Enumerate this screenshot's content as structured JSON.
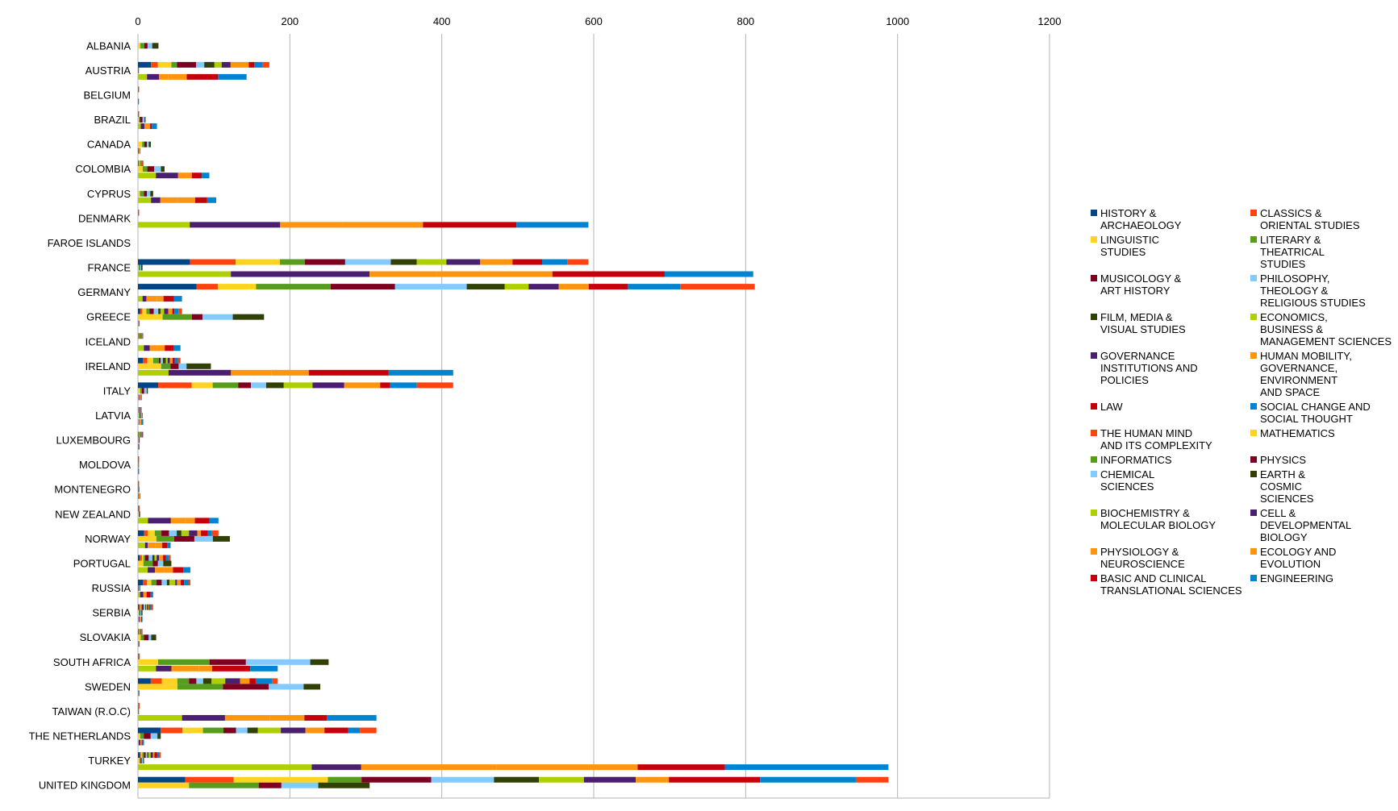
{
  "chart_data": {
    "type": "bar",
    "orientation": "horizontal",
    "stacked": true,
    "title": "",
    "xlabel": "",
    "ylabel": "",
    "xlim": [
      0,
      1200
    ],
    "xticks": [
      0,
      200,
      400,
      600,
      800,
      1000,
      1200
    ],
    "grid": true,
    "legend_position": "right",
    "categories": [
      "ALBANIA",
      "AUSTRIA",
      "BELGIUM",
      "BRAZIL",
      "CANADA",
      "COLOMBIA",
      "CYPRUS",
      "DENMARK",
      "FAROE ISLANDS",
      "FRANCE",
      "GERMANY",
      "GREECE",
      "ICELAND",
      "IRELAND",
      "ITALY",
      "LATVIA",
      "LUXEMBOURG",
      "MOLDOVA",
      "MONTENEGRO",
      "NEW ZEALAND",
      "NORWAY",
      "PORTUGAL",
      "RUSSIA",
      "SERBIA",
      "SLOVAKIA",
      "SOUTH AFRICA",
      "SWEDEN",
      "TAIWAN (R.O.C)",
      "THE NETHERLANDS",
      "TURKEY",
      "UNITED KINGDOM"
    ],
    "panels": [
      "SH",
      "PE",
      "LS"
    ],
    "series": [
      {
        "name": "HISTORY & ARCHAEOLOGY",
        "panel": "SH",
        "color": "#004586"
      },
      {
        "name": "CLASSICS & ORIENTAL STUDIES",
        "panel": "SH",
        "color": "#ff420e"
      },
      {
        "name": "LINGUISTIC STUDIES",
        "panel": "SH",
        "color": "#ffd320"
      },
      {
        "name": "LITERARY & THEATRICAL STUDIES",
        "panel": "SH",
        "color": "#579d1c"
      },
      {
        "name": "MUSICOLOGY & ART HISTORY",
        "panel": "SH",
        "color": "#7e0021"
      },
      {
        "name": "PHILOSOPHY, THEOLOGY & RELIGIOUS STUDIES",
        "panel": "SH",
        "color": "#83caff"
      },
      {
        "name": "FILM, MEDIA & VISUAL STUDIES",
        "panel": "SH",
        "color": "#314004"
      },
      {
        "name": "ECONOMICS, BUSINESS & MANAGEMENT SCIENCES",
        "panel": "SH",
        "color": "#aecf00"
      },
      {
        "name": "GOVERNANCE INSTITUTIONS AND POLICIES",
        "panel": "SH",
        "color": "#4b1f6f"
      },
      {
        "name": "HUMAN MOBILITY, GOVERNANCE, ENVIRONMENT AND SPACE",
        "panel": "SH",
        "color": "#ff950e"
      },
      {
        "name": "LAW",
        "panel": "SH",
        "color": "#c5000b"
      },
      {
        "name": "SOCIAL CHANGE AND SOCIAL THOUGHT",
        "panel": "SH",
        "color": "#0084d1"
      },
      {
        "name": "THE HUMAN MIND AND ITS COMPLEXITY",
        "panel": "SH",
        "color": "#ff420e"
      },
      {
        "name": "MATHEMATICS",
        "panel": "PE",
        "color": "#ffd320"
      },
      {
        "name": "INFORMATICS",
        "panel": "PE",
        "color": "#579d1c"
      },
      {
        "name": "PHYSICS",
        "panel": "PE",
        "color": "#7e0021"
      },
      {
        "name": "CHEMICAL SCIENCES",
        "panel": "PE",
        "color": "#83caff"
      },
      {
        "name": "EARTH & COSMIC SCIENCES",
        "panel": "PE",
        "color": "#314004"
      },
      {
        "name": "BIOCHEMISTRY & MOLECULAR BIOLOGY",
        "panel": "LS",
        "color": "#aecf00"
      },
      {
        "name": "CELL & DEVELOPMENTAL BIOLOGY",
        "panel": "LS",
        "color": "#4b1f6f"
      },
      {
        "name": "PHYSIOLOGY & NEUROSCIENCE",
        "panel": "LS",
        "color": "#ff950e"
      },
      {
        "name": "ECOLOGY AND EVOLUTION",
        "panel": "LS",
        "color": "#ff950e"
      },
      {
        "name": "BASIC AND CLINICAL TRANSLATIONAL SCIENCES",
        "panel": "LS",
        "color": "#c5000b"
      },
      {
        "name": "ENGINEERING",
        "panel": "LS",
        "color": "#0084d1"
      }
    ],
    "panel_totals": {
      "ALBANIA": [
        0,
        27,
        0
      ],
      "AUSTRIA": [
        173,
        1,
        143
      ],
      "BELGIUM": [
        1,
        0,
        1
      ],
      "BRAZIL": [
        1,
        10,
        25
      ],
      "CANADA": [
        0,
        17,
        3
      ],
      "COLOMBIA": [
        7,
        35,
        94
      ],
      "CYPRUS": [
        0,
        20,
        103
      ],
      "DENMARK": [
        1,
        0,
        593
      ],
      "FAROE ISLANDS": [
        0,
        0,
        0
      ],
      "FRANCE": [
        593,
        6,
        810
      ],
      "GERMANY": [
        812,
        0,
        58
      ],
      "GREECE": [
        58,
        166,
        2
      ],
      "ICELAND": [
        7,
        0,
        56
      ],
      "IRELAND": [
        56,
        96,
        415
      ],
      "ITALY": [
        415,
        13,
        5
      ],
      "LATVIA": [
        5,
        6,
        7
      ],
      "LUXEMBOURG": [
        7,
        2,
        2
      ],
      "MOLDOVA": [
        1,
        1,
        1
      ],
      "MONTENEGRO": [
        1,
        2,
        3
      ],
      "NEW ZEALAND": [
        2,
        3,
        106
      ],
      "NORWAY": [
        106,
        121,
        43
      ],
      "PORTUGAL": [
        43,
        44,
        69
      ],
      "RUSSIA": [
        69,
        3,
        20
      ],
      "SERBIA": [
        20,
        6,
        6
      ],
      "SLOVAKIA": [
        6,
        24,
        2
      ],
      "SOUTH AFRICA": [
        2,
        251,
        184
      ],
      "SWEDEN": [
        184,
        240,
        2
      ],
      "TAIWAN (R.O.C)": [
        2,
        1,
        314
      ],
      "THE NETHERLANDS": [
        314,
        30,
        8
      ],
      "TURKEY": [
        30,
        8,
        988
      ],
      "UNITED KINGDOM": [
        988,
        305,
        0
      ]
    },
    "values_note_omitted": ""
  }
}
